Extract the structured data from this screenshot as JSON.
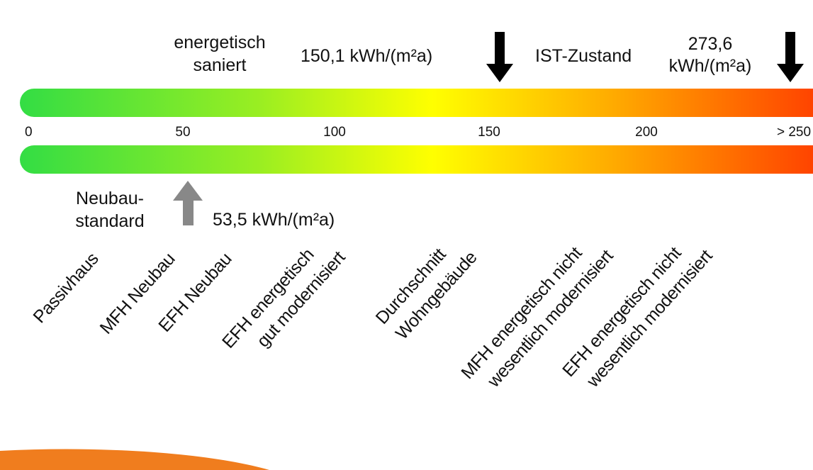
{
  "scale": {
    "ticks": [
      "0",
      "50",
      "100",
      "150",
      "200",
      "> 250"
    ]
  },
  "top_annotations": {
    "renovated_label": [
      "energetisch",
      "saniert"
    ],
    "renovated_value": "150,1 kWh/(m²a)",
    "current_label": "IST-Zustand",
    "current_value": [
      "273,6",
      "kWh/(m²a)"
    ]
  },
  "bottom_annotation": {
    "label": [
      "Neubau-",
      "standard"
    ],
    "value": "53,5 kWh/(m²a)"
  },
  "categories": [
    [
      "Passivhaus"
    ],
    [
      "MFH Neubau"
    ],
    [
      "EFH Neubau"
    ],
    [
      "EFH energetisch",
      "gut modernisiert"
    ],
    [
      "Durchschnitt",
      "Wohngebäude"
    ],
    [
      "MFH energetisch nicht",
      "wesentlich modernisiert"
    ],
    [
      "EFH energetisch nicht",
      "wesentlich modernisiert"
    ]
  ]
}
